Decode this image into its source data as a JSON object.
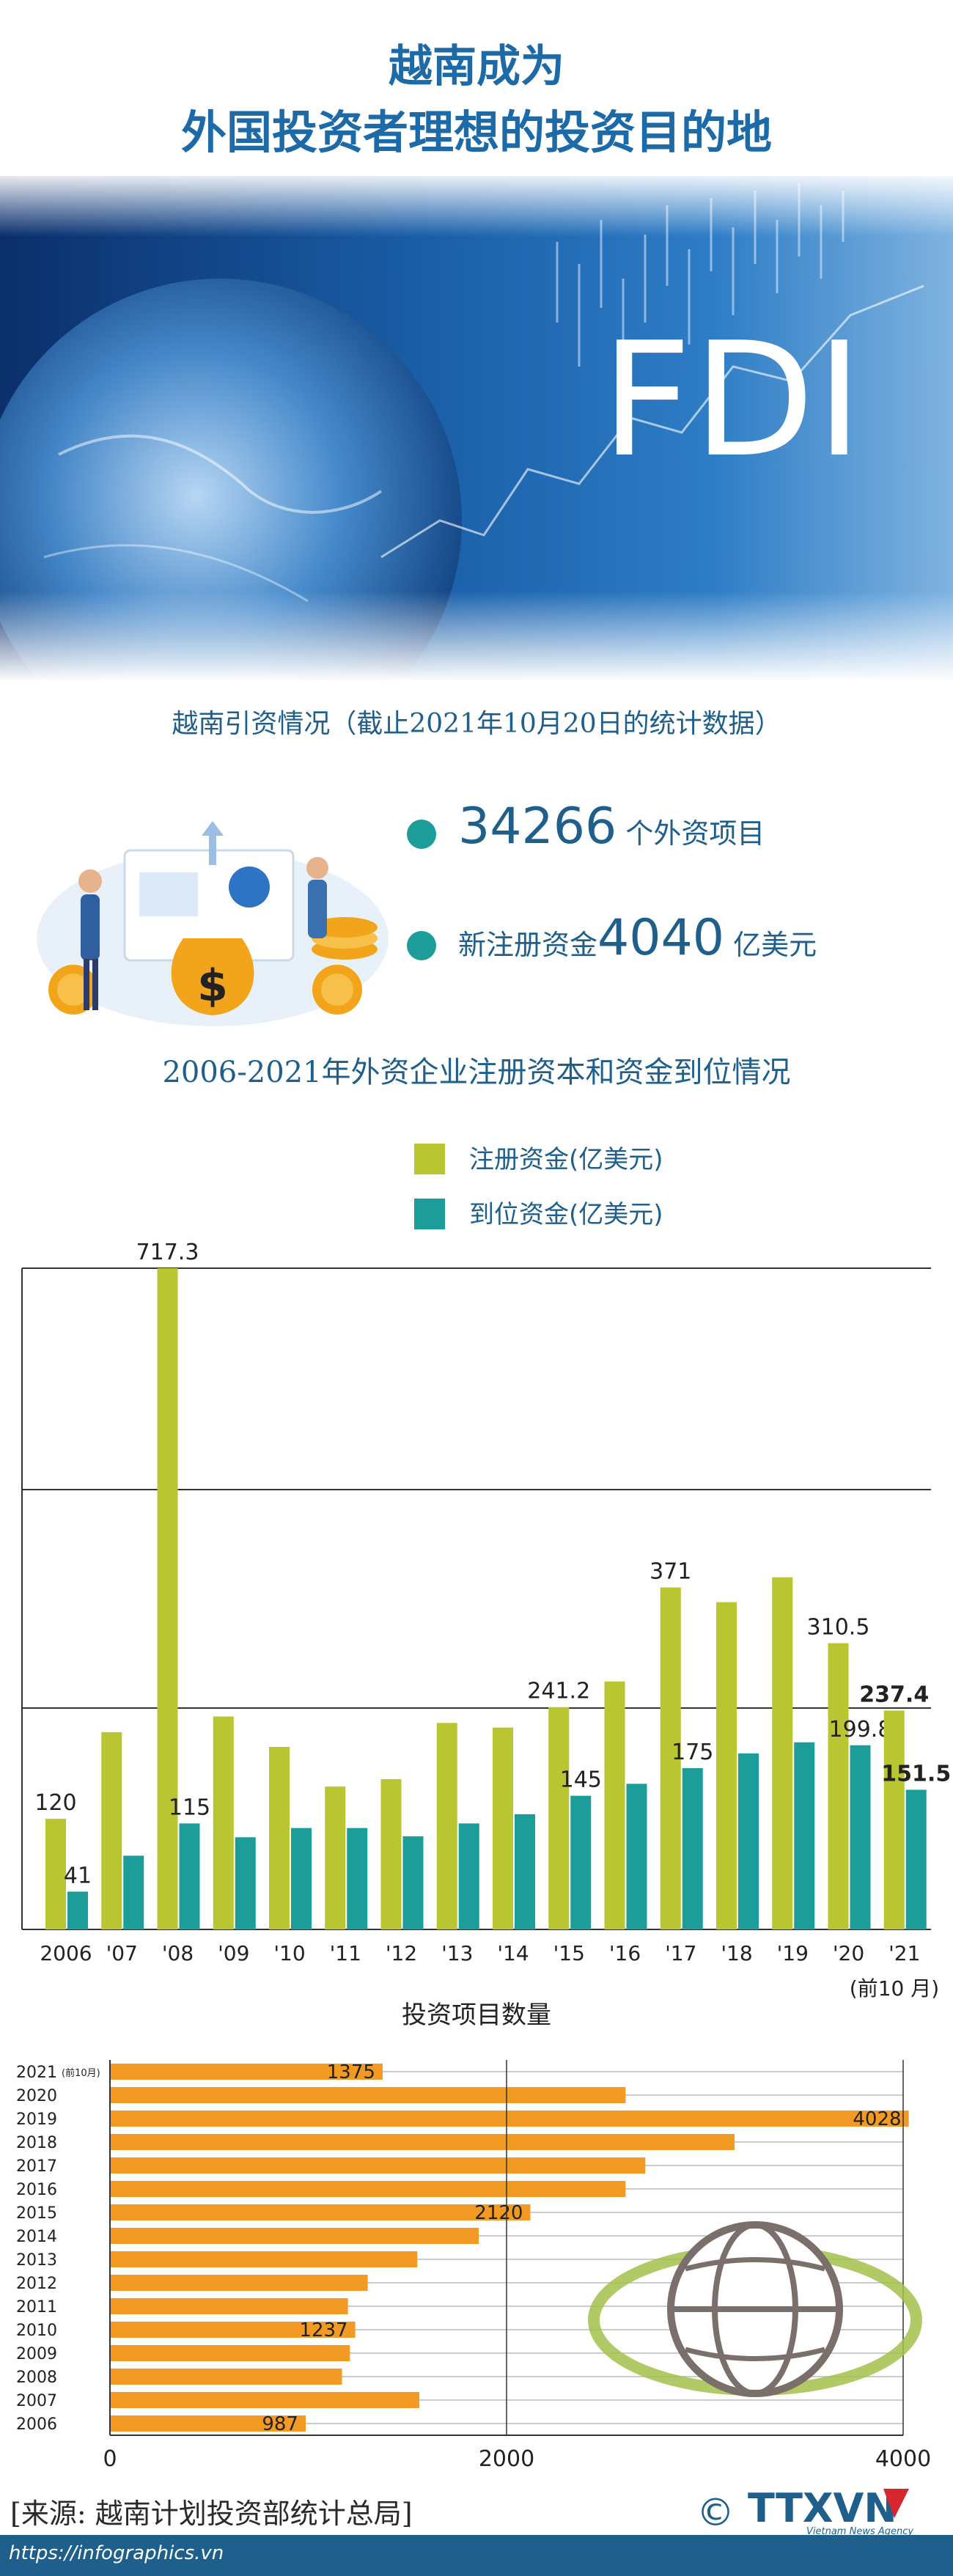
{
  "header": {
    "title_line1": "越南成为",
    "title_line2": "外国投资者理想的投资目的地",
    "hero_text": "FDI"
  },
  "stats": {
    "heading": "越南引资情况（截止2021年10月20日的统计数据）",
    "projects_value": "34266",
    "projects_label": " 个外资项目",
    "capital_prefix": "新注册资金",
    "capital_value": "4040",
    "capital_unit": " 亿美元"
  },
  "colors": {
    "registered": "#b9c632",
    "disbursed": "#1d9d9a",
    "projects": "#f39a24",
    "text_blue": "#1f5f8b"
  },
  "chart_data": [
    {
      "type": "bar",
      "title": "2006-2021年外资企业注册资本和资金到位情况",
      "categories": [
        "2006",
        "'07",
        "'08",
        "'09",
        "'10",
        "'11",
        "'12",
        "'13",
        "'14",
        "'15",
        "'16",
        "'17",
        "'18",
        "'19",
        "'20",
        "'21"
      ],
      "category_note": "(前10 月)",
      "series": [
        {
          "name": "注册资金(亿美元)",
          "values": [
            120,
            214,
            717.3,
            231,
            198,
            155,
            163,
            224,
            219,
            241.2,
            269,
            371,
            355,
            382,
            310.5,
            237.4
          ]
        },
        {
          "name": "到位资金(亿美元)",
          "values": [
            41,
            80,
            115,
            100,
            110,
            110,
            101,
            115,
            125,
            145,
            158,
            175,
            191,
            203,
            199.8,
            151.5
          ]
        }
      ],
      "data_labels": [
        {
          "series": 0,
          "index": 0,
          "text": "120"
        },
        {
          "series": 1,
          "index": 0,
          "text": "41"
        },
        {
          "series": 0,
          "index": 2,
          "text": "717.3"
        },
        {
          "series": 1,
          "index": 2,
          "text": "115"
        },
        {
          "series": 0,
          "index": 9,
          "text": "241.2"
        },
        {
          "series": 1,
          "index": 9,
          "text": "145"
        },
        {
          "series": 0,
          "index": 11,
          "text": "371"
        },
        {
          "series": 1,
          "index": 11,
          "text": "175"
        },
        {
          "series": 0,
          "index": 14,
          "text": "310.5"
        },
        {
          "series": 1,
          "index": 14,
          "text": "199.8"
        },
        {
          "series": 0,
          "index": 15,
          "text": "237.4"
        },
        {
          "series": 1,
          "index": 15,
          "text": "151.5"
        }
      ],
      "legend_position": "top-center",
      "grid": true
    },
    {
      "type": "bar",
      "orientation": "horizontal",
      "title": "投资项目数量",
      "categories": [
        "2021",
        "2020",
        "2019",
        "2018",
        "2017",
        "2016",
        "2015",
        "2014",
        "2013",
        "2012",
        "2011",
        "2010",
        "2009",
        "2008",
        "2007",
        "2006"
      ],
      "category_notes": {
        "2021": "(前10月)"
      },
      "values": [
        1375,
        2600,
        4028,
        3150,
        2700,
        2600,
        2120,
        1860,
        1550,
        1300,
        1200,
        1237,
        1210,
        1170,
        1560,
        987
      ],
      "data_labels": [
        {
          "index": 0,
          "text": "1375"
        },
        {
          "index": 2,
          "text": "4028"
        },
        {
          "index": 6,
          "text": "2120"
        },
        {
          "index": 11,
          "text": "1237"
        },
        {
          "index": 15,
          "text": "987"
        }
      ],
      "xlim": [
        0,
        4000
      ],
      "xticks": [
        "0",
        "2000",
        "4000"
      ],
      "grid": true
    }
  ],
  "footer": {
    "source": "[来源: 越南计划投资部统计总局]",
    "url": "https://infographics.vn",
    "logo_text": "TTXVN",
    "logo_sub": "Vietnam News Agency",
    "copyright": "©"
  }
}
